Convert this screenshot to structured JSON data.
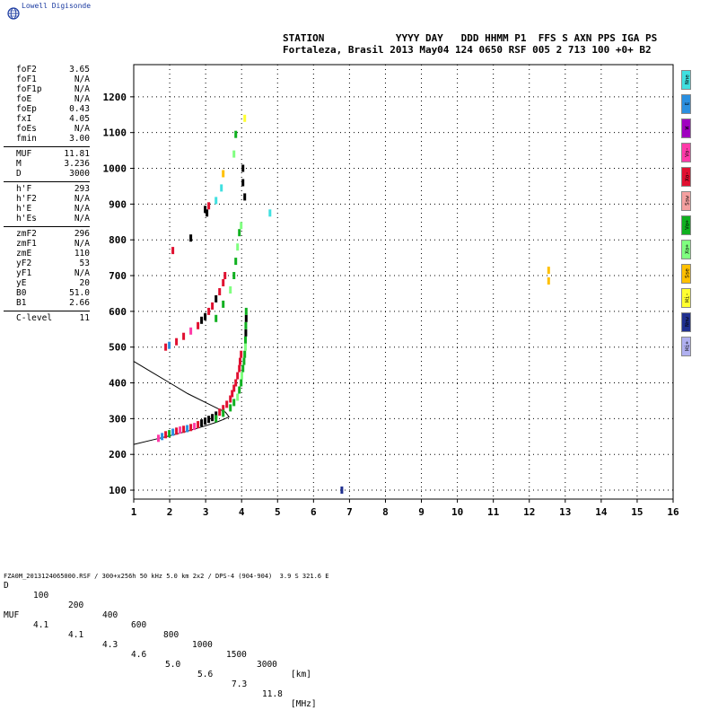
{
  "logo": {
    "text": "Lowell Digisonde",
    "icon": "globe-icon"
  },
  "header": {
    "line1": "STATION            YYYY DAY   DDD HHMM P1  FFS S AXN PPS IGA PS",
    "line2": "Fortaleza, Brasil 2013 May04 124 0650 RSF 005 2 713 100 +0+ B2"
  },
  "params": {
    "group1": [
      {
        "k": "foF2",
        "v": "3.65"
      },
      {
        "k": "foF1",
        "v": "N/A"
      },
      {
        "k": "foF1p",
        "v": "N/A"
      },
      {
        "k": "foE",
        "v": "N/A"
      },
      {
        "k": "foEp",
        "v": "0.43"
      },
      {
        "k": "fxI",
        "v": "4.05"
      },
      {
        "k": "foEs",
        "v": "N/A"
      },
      {
        "k": "fmin",
        "v": "3.00"
      }
    ],
    "group2": [
      {
        "k": "MUF",
        "v": "11.81"
      },
      {
        "k": "M",
        "v": "3.236"
      },
      {
        "k": "D",
        "v": "3000"
      }
    ],
    "group3": [
      {
        "k": "h'F",
        "v": "293"
      },
      {
        "k": "h'F2",
        "v": "N/A"
      },
      {
        "k": "h'E",
        "v": "N/A"
      },
      {
        "k": "h'Es",
        "v": "N/A"
      }
    ],
    "group4": [
      {
        "k": "zmF2",
        "v": "296"
      },
      {
        "k": "zmF1",
        "v": "N/A"
      },
      {
        "k": "zmE",
        "v": "110"
      },
      {
        "k": "yF2",
        "v": "53"
      },
      {
        "k": "yF1",
        "v": "N/A"
      },
      {
        "k": "yE",
        "v": "20"
      },
      {
        "k": "B0",
        "v": "51.0"
      },
      {
        "k": "B1",
        "v": "2.66"
      }
    ],
    "group5": [
      {
        "k": "C-level",
        "v": "11"
      }
    ]
  },
  "legend": [
    {
      "label": "Nne",
      "color": "#40e0e0"
    },
    {
      "label": "E",
      "color": "#2a8fe0"
    },
    {
      "label": "W",
      "color": "#a000c0"
    },
    {
      "label": "Vo-",
      "color": "#ff3aa8"
    },
    {
      "label": "Xo-",
      "color": "#e01030"
    },
    {
      "label": "Ssw",
      "color": "#f4a0a0"
    },
    {
      "label": "Vo+",
      "color": "#10b020"
    },
    {
      "label": "Xo+",
      "color": "#80ff80"
    },
    {
      "label": "Sse",
      "color": "#ffc000"
    },
    {
      "label": "Hi-",
      "color": "#ffff30"
    },
    {
      "label": "Nnw",
      "color": "#203090"
    },
    {
      "label": "Hi+",
      "color": "#b0b0f0"
    }
  ],
  "muf_table": {
    "d_label": "D",
    "muf_label": "MUF",
    "d_values": [
      "100",
      "200",
      "400",
      "600",
      "800",
      "1000",
      "1500",
      "3000"
    ],
    "muf_values": [
      "4.1",
      "4.1",
      "4.3",
      "4.6",
      "5.0",
      "5.6",
      "7.3",
      "11.8"
    ],
    "d_unit": "[km]",
    "muf_unit": "[MHz]"
  },
  "footer": "FZA0M_2013124065000.RSF / 300+x256h 50 kHz 5.0 km 2x2 / DPS-4 (904-904)  3.9 S 321.6 E",
  "chart_data": {
    "type": "scatter",
    "x_ticks": [
      "1",
      "2",
      "3",
      "4",
      "5",
      "6",
      "7",
      "8",
      "9",
      "10",
      "11",
      "12",
      "13",
      "14",
      "15",
      "16"
    ],
    "y_ticks": [
      "100",
      "200",
      "300",
      "400",
      "500",
      "600",
      "700",
      "800",
      "900",
      "1000",
      "1100",
      "1200"
    ],
    "xlim": [
      1,
      16
    ],
    "ylim": [
      75,
      1290
    ],
    "grid": true,
    "profile_curve": [
      [
        1.0,
        228
      ],
      [
        1.5,
        240
      ],
      [
        2.0,
        252
      ],
      [
        2.5,
        265
      ],
      [
        3.0,
        280
      ],
      [
        3.3,
        290
      ],
      [
        3.5,
        298
      ],
      [
        3.65,
        305
      ],
      [
        3.55,
        318
      ],
      [
        3.3,
        330
      ],
      [
        3.0,
        345
      ],
      [
        2.5,
        370
      ],
      [
        2.0,
        400
      ],
      [
        1.5,
        430
      ],
      [
        1.0,
        460
      ]
    ],
    "trace_F1_o": [
      [
        1.7,
        245,
        "#ff3aa8"
      ],
      [
        1.8,
        250,
        "#2a8fe0"
      ],
      [
        1.9,
        255,
        "#e01030"
      ],
      [
        2.0,
        258,
        "#10b020"
      ],
      [
        2.1,
        262,
        "#2a8fe0"
      ],
      [
        2.2,
        265,
        "#e01030"
      ],
      [
        2.3,
        268,
        "#ff3aa8"
      ],
      [
        2.4,
        270,
        "#e01030"
      ],
      [
        2.5,
        272,
        "#2a8fe0"
      ],
      [
        2.6,
        275,
        "#e01030"
      ],
      [
        2.7,
        278,
        "#ff3aa8"
      ],
      [
        2.8,
        283,
        "#e01030"
      ],
      [
        2.9,
        288,
        "#000000"
      ],
      [
        3.0,
        293,
        "#000000"
      ],
      [
        3.1,
        298,
        "#000000"
      ],
      [
        3.2,
        303,
        "#000000"
      ],
      [
        3.3,
        310,
        "#000000"
      ],
      [
        3.4,
        318,
        "#e01030"
      ],
      [
        3.5,
        328,
        "#e01030"
      ],
      [
        3.6,
        340,
        "#e01030"
      ],
      [
        3.7,
        355,
        "#e01030"
      ],
      [
        3.75,
        370,
        "#e01030"
      ],
      [
        3.8,
        385,
        "#e01030"
      ],
      [
        3.85,
        400,
        "#e01030"
      ],
      [
        3.9,
        420,
        "#e01030"
      ],
      [
        3.95,
        440,
        "#e01030"
      ],
      [
        3.97,
        460,
        "#e01030"
      ],
      [
        4.0,
        480,
        "#e01030"
      ]
    ],
    "trace_F1_x": [
      [
        3.3,
        300,
        "#10b020"
      ],
      [
        3.5,
        315,
        "#10b020"
      ],
      [
        3.7,
        330,
        "#10b020"
      ],
      [
        3.8,
        345,
        "#10b020"
      ],
      [
        3.9,
        360,
        "#80ff80"
      ],
      [
        3.95,
        380,
        "#10b020"
      ],
      [
        4.0,
        400,
        "#10b020"
      ],
      [
        4.02,
        420,
        "#80ff80"
      ],
      [
        4.05,
        440,
        "#10b020"
      ],
      [
        4.08,
        460,
        "#10b020"
      ],
      [
        4.1,
        480,
        "#10b020"
      ],
      [
        4.12,
        500,
        "#80ff80"
      ],
      [
        4.12,
        520,
        "#10b020"
      ],
      [
        4.13,
        540,
        "#000000"
      ],
      [
        4.13,
        560,
        "#10b020"
      ],
      [
        4.14,
        580,
        "#000000"
      ],
      [
        4.14,
        600,
        "#10b020"
      ]
    ],
    "trace_F2_o": [
      [
        1.9,
        500,
        "#e01030"
      ],
      [
        2.0,
        505,
        "#2a8fe0"
      ],
      [
        2.2,
        515,
        "#e01030"
      ],
      [
        2.4,
        530,
        "#e01030"
      ],
      [
        2.6,
        545,
        "#ff3aa8"
      ],
      [
        2.8,
        560,
        "#e01030"
      ],
      [
        2.9,
        575,
        "#000000"
      ],
      [
        3.0,
        585,
        "#000000"
      ],
      [
        3.1,
        600,
        "#e01030"
      ],
      [
        3.2,
        615,
        "#e01030"
      ],
      [
        3.3,
        635,
        "#000000"
      ],
      [
        3.4,
        655,
        "#e01030"
      ],
      [
        3.5,
        680,
        "#e01030"
      ],
      [
        3.55,
        700,
        "#e01030"
      ]
    ],
    "trace_F2_x": [
      [
        3.3,
        580,
        "#10b020"
      ],
      [
        3.5,
        620,
        "#10b020"
      ],
      [
        3.7,
        660,
        "#80ff80"
      ],
      [
        3.8,
        700,
        "#10b020"
      ],
      [
        3.85,
        740,
        "#10b020"
      ],
      [
        3.9,
        780,
        "#80ff80"
      ],
      [
        3.95,
        820,
        "#10b020"
      ],
      [
        4.0,
        840,
        "#80ff80"
      ]
    ],
    "trace_F3": [
      [
        2.1,
        770,
        "#e01030"
      ],
      [
        2.6,
        805,
        "#000000"
      ],
      [
        3.0,
        885,
        "#000000"
      ],
      [
        3.05,
        875,
        "#000000"
      ],
      [
        3.1,
        895,
        "#e01030"
      ],
      [
        3.5,
        985,
        "#ffc000"
      ],
      [
        4.05,
        1000,
        "#000000"
      ],
      [
        4.05,
        960,
        "#000000"
      ],
      [
        3.85,
        1095,
        "#10b020"
      ],
      [
        4.1,
        1140,
        "#ffff30"
      ],
      [
        3.8,
        1040,
        "#80ff80"
      ],
      [
        3.45,
        945,
        "#40e0e0"
      ],
      [
        3.3,
        910,
        "#40e0e0"
      ],
      [
        4.8,
        875,
        "#40e0e0"
      ],
      [
        4.1,
        920,
        "#000000"
      ]
    ],
    "isolated": [
      [
        6.8,
        100,
        "#203090"
      ],
      [
        12.55,
        715,
        "#ffc000"
      ],
      [
        12.55,
        685,
        "#ffc000"
      ]
    ]
  }
}
